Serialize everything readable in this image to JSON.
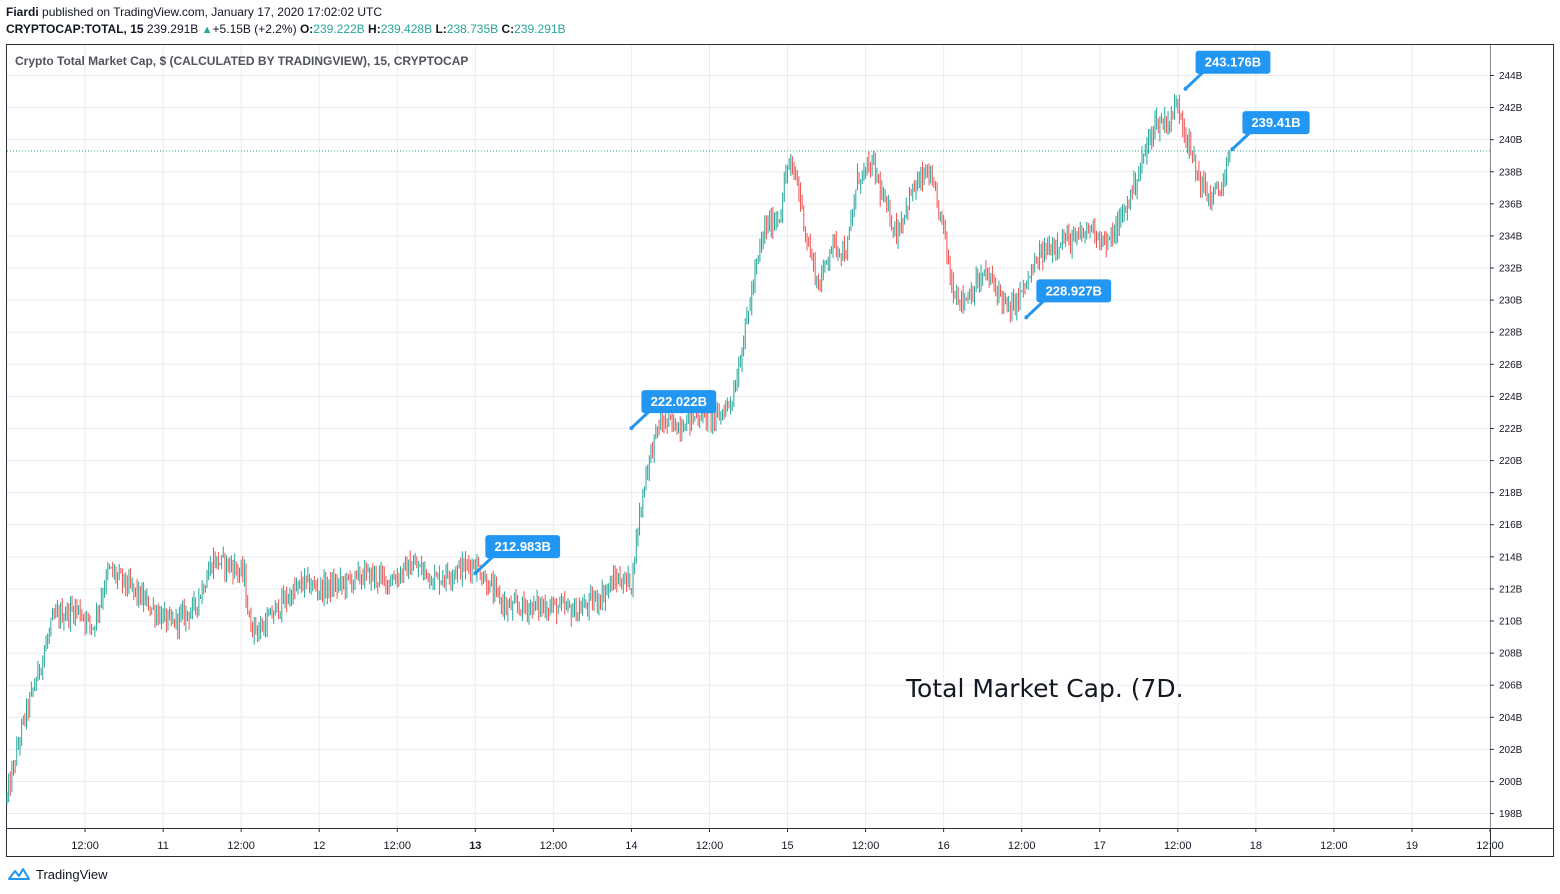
{
  "header": {
    "author": "Fiardi",
    "published": "published on TradingView.com, January 17, 2020 17:02:02 UTC",
    "symbol": "CRYPTOCAP:TOTAL, 15",
    "last": "239.291B",
    "change_arrow": "▲",
    "change": "+5.15B (+2.2%)",
    "o_label": "O:",
    "o": "239.222B",
    "h_label": "H:",
    "h": "239.428B",
    "l_label": "L:",
    "l": "238.735B",
    "c_label": "C:",
    "c": "239.291B"
  },
  "chart_data": {
    "type": "candlestick",
    "title": "Crypto Total Market Cap, $ (CALCULATED BY TRADINGVIEW), 15, CRYPTOCAP",
    "annotation": "Total Market Cap. (7D.",
    "x_ticks": [
      "12:00",
      "11",
      "12:00",
      "12",
      "12:00",
      "13",
      "12:00",
      "14",
      "12:00",
      "15",
      "12:00",
      "16",
      "12:00",
      "17",
      "12:00",
      "18",
      "12:00",
      "19",
      "12:00"
    ],
    "bold_x_tick": "13",
    "y_ticks": [
      "198B",
      "200B",
      "202B",
      "204B",
      "206B",
      "208B",
      "210B",
      "212B",
      "214B",
      "216B",
      "218B",
      "220B",
      "222B",
      "224B",
      "226B",
      "228B",
      "230B",
      "232B",
      "234B",
      "236B",
      "238B",
      "240B",
      "242B",
      "244B"
    ],
    "ylim": [
      197.1,
      245.9
    ],
    "xlim_days": [
      10.0,
      19.5
    ],
    "current_price": 239.291,
    "price_path": [
      [
        10.0,
        199.0
      ],
      [
        10.1,
        203.5
      ],
      [
        10.2,
        206.8
      ],
      [
        10.3,
        210.2
      ],
      [
        10.45,
        210.8
      ],
      [
        10.55,
        209.6
      ],
      [
        10.65,
        213.2
      ],
      [
        10.8,
        212.0
      ],
      [
        10.95,
        210.6
      ],
      [
        11.05,
        209.8
      ],
      [
        11.2,
        210.8
      ],
      [
        11.32,
        213.8
      ],
      [
        11.45,
        213.4
      ],
      [
        11.52,
        212.8
      ],
      [
        11.55,
        209.9
      ],
      [
        11.62,
        209.4
      ],
      [
        11.75,
        211.0
      ],
      [
        11.9,
        212.4
      ],
      [
        12.0,
        212.0
      ],
      [
        12.15,
        212.3
      ],
      [
        12.3,
        212.9
      ],
      [
        12.45,
        212.5
      ],
      [
        12.6,
        213.5
      ],
      [
        12.75,
        212.6
      ],
      [
        12.88,
        213.2
      ],
      [
        13.0,
        213.6
      ],
      [
        13.08,
        212.3
      ],
      [
        13.2,
        210.8
      ],
      [
        13.35,
        210.9
      ],
      [
        13.5,
        210.9
      ],
      [
        13.65,
        210.6
      ],
      [
        13.8,
        211.5
      ],
      [
        13.9,
        212.6
      ],
      [
        14.0,
        212.4
      ],
      [
        14.05,
        216.5
      ],
      [
        14.1,
        219.6
      ],
      [
        14.18,
        222.4
      ],
      [
        14.3,
        222.2
      ],
      [
        14.45,
        222.9
      ],
      [
        14.55,
        222.6
      ],
      [
        14.65,
        224.0
      ],
      [
        14.7,
        226.6
      ],
      [
        14.78,
        231.0
      ],
      [
        14.85,
        234.4
      ],
      [
        14.95,
        235.3
      ],
      [
        15.0,
        238.4
      ],
      [
        15.06,
        237.6
      ],
      [
        15.12,
        234.0
      ],
      [
        15.2,
        230.8
      ],
      [
        15.28,
        233.5
      ],
      [
        15.38,
        233.0
      ],
      [
        15.45,
        237.6
      ],
      [
        15.55,
        238.4
      ],
      [
        15.62,
        236.0
      ],
      [
        15.7,
        234.2
      ],
      [
        15.8,
        236.8
      ],
      [
        15.9,
        238.0
      ],
      [
        16.0,
        234.5
      ],
      [
        16.05,
        231.0
      ],
      [
        16.12,
        229.9
      ],
      [
        16.2,
        230.9
      ],
      [
        16.27,
        231.6
      ],
      [
        16.35,
        230.6
      ],
      [
        16.42,
        229.2
      ],
      [
        16.52,
        230.8
      ],
      [
        16.62,
        232.8
      ],
      [
        16.75,
        233.8
      ],
      [
        16.85,
        233.7
      ],
      [
        16.95,
        234.6
      ],
      [
        17.05,
        233.4
      ],
      [
        17.15,
        235.3
      ],
      [
        17.25,
        238.0
      ],
      [
        17.35,
        241.0
      ],
      [
        17.45,
        241.2
      ],
      [
        17.5,
        242.4
      ],
      [
        17.56,
        240.0
      ],
      [
        17.62,
        238.0
      ],
      [
        17.7,
        236.3
      ],
      [
        17.78,
        237.0
      ],
      [
        17.85,
        239.3
      ]
    ],
    "labels": [
      {
        "text": "212.983B",
        "t": 13.0,
        "price": 212.983
      },
      {
        "text": "222.022B",
        "t": 14.0,
        "price": 222.022
      },
      {
        "text": "228.927B",
        "t": 16.53,
        "price": 228.927
      },
      {
        "text": "243.176B",
        "t": 17.55,
        "price": 243.176
      },
      {
        "text": "239.41B",
        "t": 17.85,
        "price": 239.41
      }
    ],
    "colors": {
      "up": "#26a69a",
      "down": "#ef5350",
      "label": "#2196f3",
      "grid": "#e8ecf2",
      "price_line": "#26a69a"
    }
  },
  "footer": {
    "brand": "TradingView",
    "logo_icon": "tradingview-cloud-icon"
  }
}
